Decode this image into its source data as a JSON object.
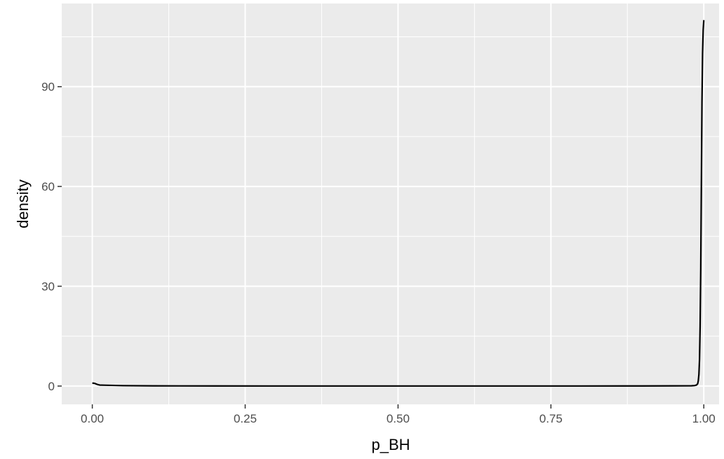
{
  "chart_data": {
    "type": "line",
    "title": "",
    "xlabel": "p_BH",
    "ylabel": "density",
    "xlim": [
      -0.05,
      1.025
    ],
    "ylim": [
      -5.5,
      115
    ],
    "x_ticks": [
      0.0,
      0.25,
      0.5,
      0.75,
      1.0
    ],
    "x_tick_labels": [
      "0.00",
      "0.25",
      "0.50",
      "0.75",
      "1.00"
    ],
    "y_ticks": [
      0,
      30,
      60,
      90
    ],
    "y_tick_labels": [
      "0",
      "30",
      "60",
      "90"
    ],
    "grid": true,
    "legend": "none",
    "colors": {
      "panel": "#ebebeb",
      "grid": "#ffffff",
      "line": "#000000",
      "tick": "#333333"
    },
    "series": [
      {
        "x": [
          0.0,
          0.004,
          0.008,
          0.012,
          0.02,
          0.05,
          0.1,
          0.2,
          0.3,
          0.4,
          0.5,
          0.6,
          0.7,
          0.8,
          0.9,
          0.95,
          0.98,
          0.985,
          0.988,
          0.99,
          0.991,
          0.992,
          0.993,
          0.994,
          0.995,
          0.996,
          0.997,
          0.998,
          0.999,
          1.0
        ],
        "y": [
          0.9,
          0.8,
          0.5,
          0.3,
          0.25,
          0.12,
          0.06,
          0.03,
          0.02,
          0.02,
          0.02,
          0.02,
          0.02,
          0.02,
          0.03,
          0.05,
          0.08,
          0.15,
          0.3,
          0.7,
          1.6,
          3.5,
          8,
          18,
          35,
          60,
          85,
          100,
          107,
          110
        ]
      }
    ]
  }
}
